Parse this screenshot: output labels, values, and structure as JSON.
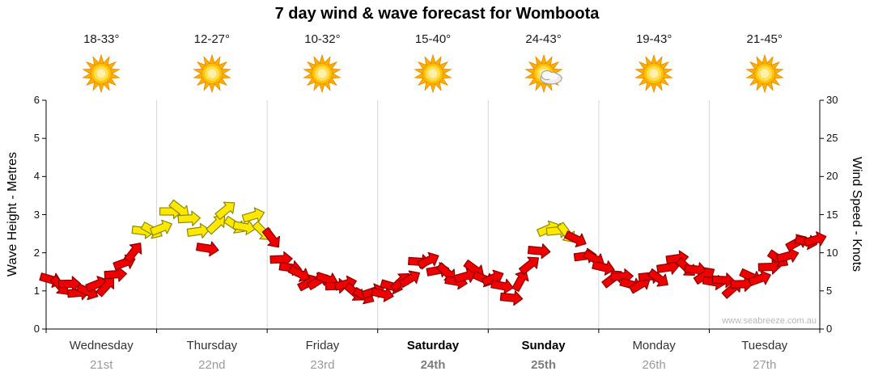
{
  "title": "7 day wind & wave forecast for Womboota",
  "watermark": "www.seabreeze.com.au",
  "forecast_header": {
    "cells": [
      {
        "temp": "18-33°",
        "icon": "sun"
      },
      {
        "temp": "12-27°",
        "icon": "sun"
      },
      {
        "temp": "10-32°",
        "icon": "sun"
      },
      {
        "temp": "15-40°",
        "icon": "sun"
      },
      {
        "temp": "24-43°",
        "icon": "sun-cloud"
      },
      {
        "temp": "19-43°",
        "icon": "sun"
      },
      {
        "temp": "21-45°",
        "icon": "sun"
      }
    ]
  },
  "chart_data": {
    "type": "scatter",
    "marker": "wind-direction-arrow",
    "title": "7 day wind & wave forecast for Womboota",
    "y_left_axis": {
      "label": "Wave Height - Metres",
      "min": 0,
      "max": 6,
      "ticks": [
        0,
        1,
        2,
        3,
        4,
        5,
        6
      ]
    },
    "y_right_axis": {
      "label": "Wind Speed - Knots",
      "min": 0,
      "max": 30,
      "ticks": [
        0,
        5,
        10,
        15,
        20,
        25,
        30
      ]
    },
    "days": [
      {
        "name": "Wednesday",
        "date": "21st",
        "weekend": false
      },
      {
        "name": "Thursday",
        "date": "22nd",
        "weekend": false
      },
      {
        "name": "Friday",
        "date": "23rd",
        "weekend": false
      },
      {
        "name": "Saturday",
        "date": "24th",
        "weekend": true
      },
      {
        "name": "Sunday",
        "date": "25th",
        "weekend": true
      },
      {
        "name": "Monday",
        "date": "26th",
        "weekend": false
      },
      {
        "name": "Tuesday",
        "date": "27th",
        "weekend": false
      }
    ],
    "points_per_day": 12,
    "wind_knots": [
      6.5,
      6,
      5.5,
      5,
      5,
      5.5,
      6,
      7,
      8.5,
      10.5,
      12.5,
      13,
      13.5,
      15,
      16,
      14.5,
      12.5,
      11,
      13.5,
      15.5,
      14,
      13,
      15,
      13,
      11.5,
      9.5,
      8,
      7,
      6.5,
      6,
      6.5,
      6,
      5.5,
      5,
      4.5,
      4.5,
      5,
      5.5,
      6,
      7,
      8.5,
      9,
      8,
      7,
      6.5,
      7,
      7.5,
      7,
      6.5,
      5.5,
      4.5,
      6,
      8.5,
      10.5,
      12.7,
      13.2,
      12.6,
      11.5,
      10,
      9,
      8,
      7,
      6.5,
      6,
      6,
      6.5,
      7,
      8,
      9,
      8.5,
      7.5,
      7,
      6.5,
      6,
      5.5,
      6,
      6.5,
      7,
      8,
      9,
      10,
      11,
      11.5,
      12
    ],
    "wind_colors": {
      "low": "#f00000",
      "moderate": "#ffe800",
      "moderate_threshold_knots": 12.5
    },
    "grid": "vertical day separators only",
    "legend": "none"
  }
}
